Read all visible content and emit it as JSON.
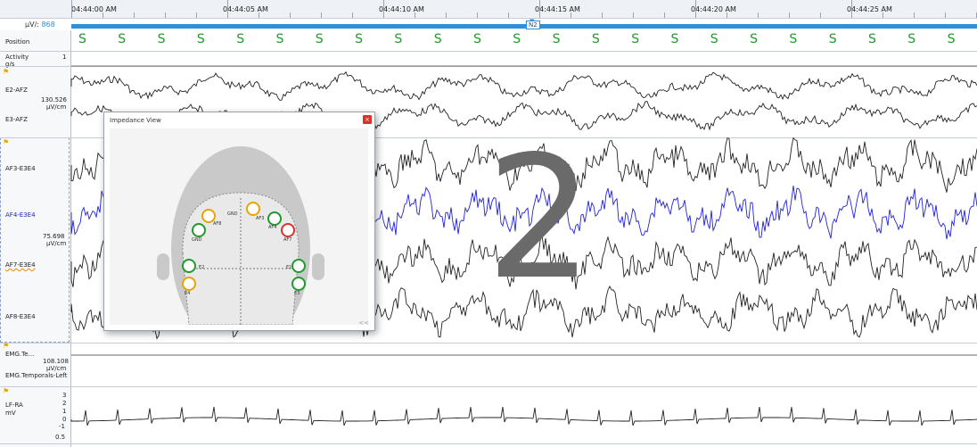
{
  "timeline": {
    "ticks": [
      "04:44:00 AM",
      "04:44:05 AM",
      "04:44:10 AM",
      "04:44:15 AM",
      "04:44:20 AM",
      "04:44:25 AM"
    ],
    "gain_label": "μV/:",
    "gain_value": "868",
    "stage_tag": "N2"
  },
  "stage_mark": "S",
  "overlay_number": "2",
  "channels": {
    "position": "Position",
    "activity": "Activity",
    "activity_unit": "g/s",
    "activity_value": "1",
    "e2": "E2-AFZ",
    "e2_scale": "130.526",
    "e2_unit": "μV/cm",
    "e3": "E3-AFZ",
    "af3": "AF3-E3E4",
    "af4": "AF4-E3E4",
    "af4_scale": "75.698",
    "af4_unit": "μV/cm",
    "af7": "AF7-E3E4",
    "af8": "AF8-E3E4",
    "emg1": "EMG.Te...",
    "emg1_scale": "108.108",
    "emg1_unit": "μV/cm",
    "emg2": "EMG.Temporals-Left",
    "ecg": "LF-RA",
    "ecg_unit": "mV",
    "ecg_ticks": [
      "3",
      "2",
      "1",
      "0",
      "-1"
    ],
    "ecg_scale": "0.5"
  },
  "impedance": {
    "title": "Impedance View",
    "close": "×",
    "collapse": "<<",
    "electrodes": [
      "AF8",
      "GND",
      "AF3",
      "AF4",
      "AF7",
      "AF3",
      "E2",
      "E4",
      "E1",
      "E3"
    ]
  },
  "colors": {
    "stage_bar": "#2f8fd8",
    "stage_mark": "#1f9a2b",
    "trace": "#222222",
    "trace_highlight": "#2222dd",
    "electrode_good": "#1f9a2b",
    "electrode_fair": "#e8a400",
    "electrode_bad": "#d9342b"
  }
}
